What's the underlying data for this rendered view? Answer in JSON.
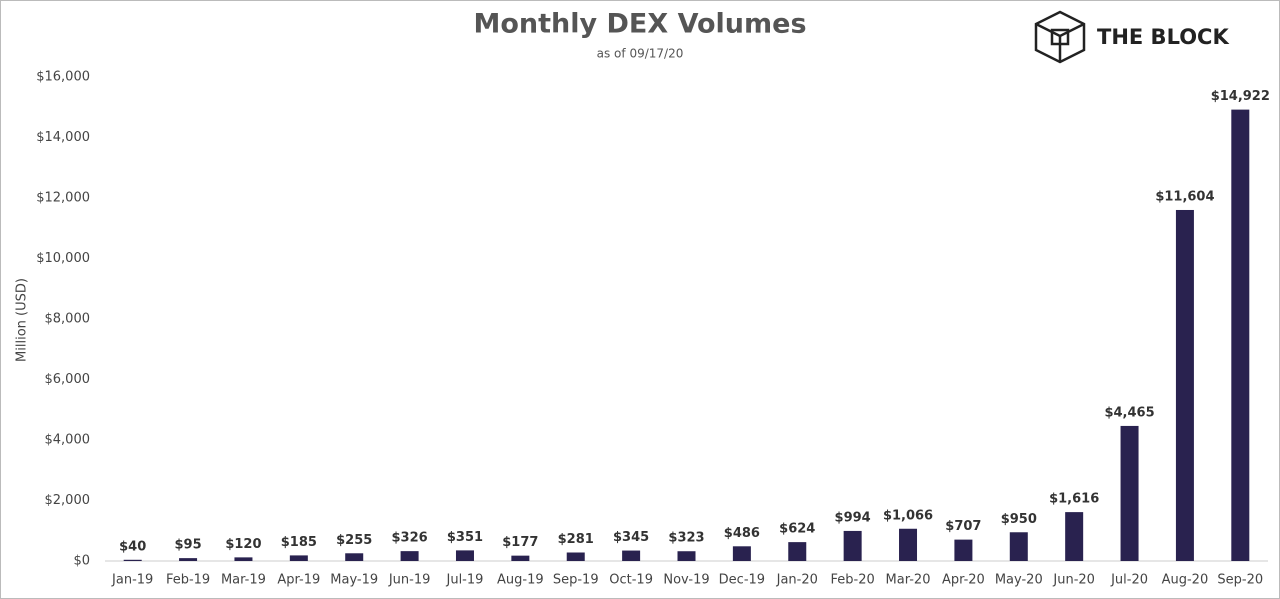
{
  "chart_data": {
    "type": "bar",
    "title": "Monthly DEX Volumes",
    "subtitle": "as of 09/17/20",
    "y_label": "Million (USD)",
    "logo_text": "THE BLOCK",
    "categories": [
      "Jan-19",
      "Feb-19",
      "Mar-19",
      "Apr-19",
      "May-19",
      "Jun-19",
      "Jul-19",
      "Aug-19",
      "Sep-19",
      "Oct-19",
      "Nov-19",
      "Dec-19",
      "Jan-20",
      "Feb-20",
      "Mar-20",
      "Apr-20",
      "May-20",
      "Jun-20",
      "Jul-20",
      "Aug-20",
      "Sep-20"
    ],
    "values": [
      40,
      95,
      120,
      185,
      255,
      326,
      351,
      177,
      281,
      345,
      323,
      486,
      624,
      994,
      1066,
      707,
      950,
      1616,
      4465,
      11604,
      14922
    ],
    "value_labels": [
      "$40",
      "$95",
      "$120",
      "$185",
      "$255",
      "$326",
      "$351",
      "$177",
      "$281",
      "$345",
      "$323",
      "$486",
      "$624",
      "$994",
      "$1,066",
      "$707",
      "$950",
      "$1,616",
      "$4,465",
      "$11,604",
      "$14,922"
    ],
    "color": "#29224f",
    "ylim": [
      0,
      16000
    ],
    "yticks": [
      {
        "value": 0,
        "label": "$0"
      },
      {
        "value": 2000,
        "label": "$2,000"
      },
      {
        "value": 4000,
        "label": "$4,000"
      },
      {
        "value": 6000,
        "label": "$6,000"
      },
      {
        "value": 8000,
        "label": "$8,000"
      },
      {
        "value": 10000,
        "label": "$10,000"
      },
      {
        "value": 12000,
        "label": "$12,000"
      },
      {
        "value": 14000,
        "label": "$14,000"
      },
      {
        "value": 16000,
        "label": "$16,000"
      }
    ],
    "grid": false
  }
}
